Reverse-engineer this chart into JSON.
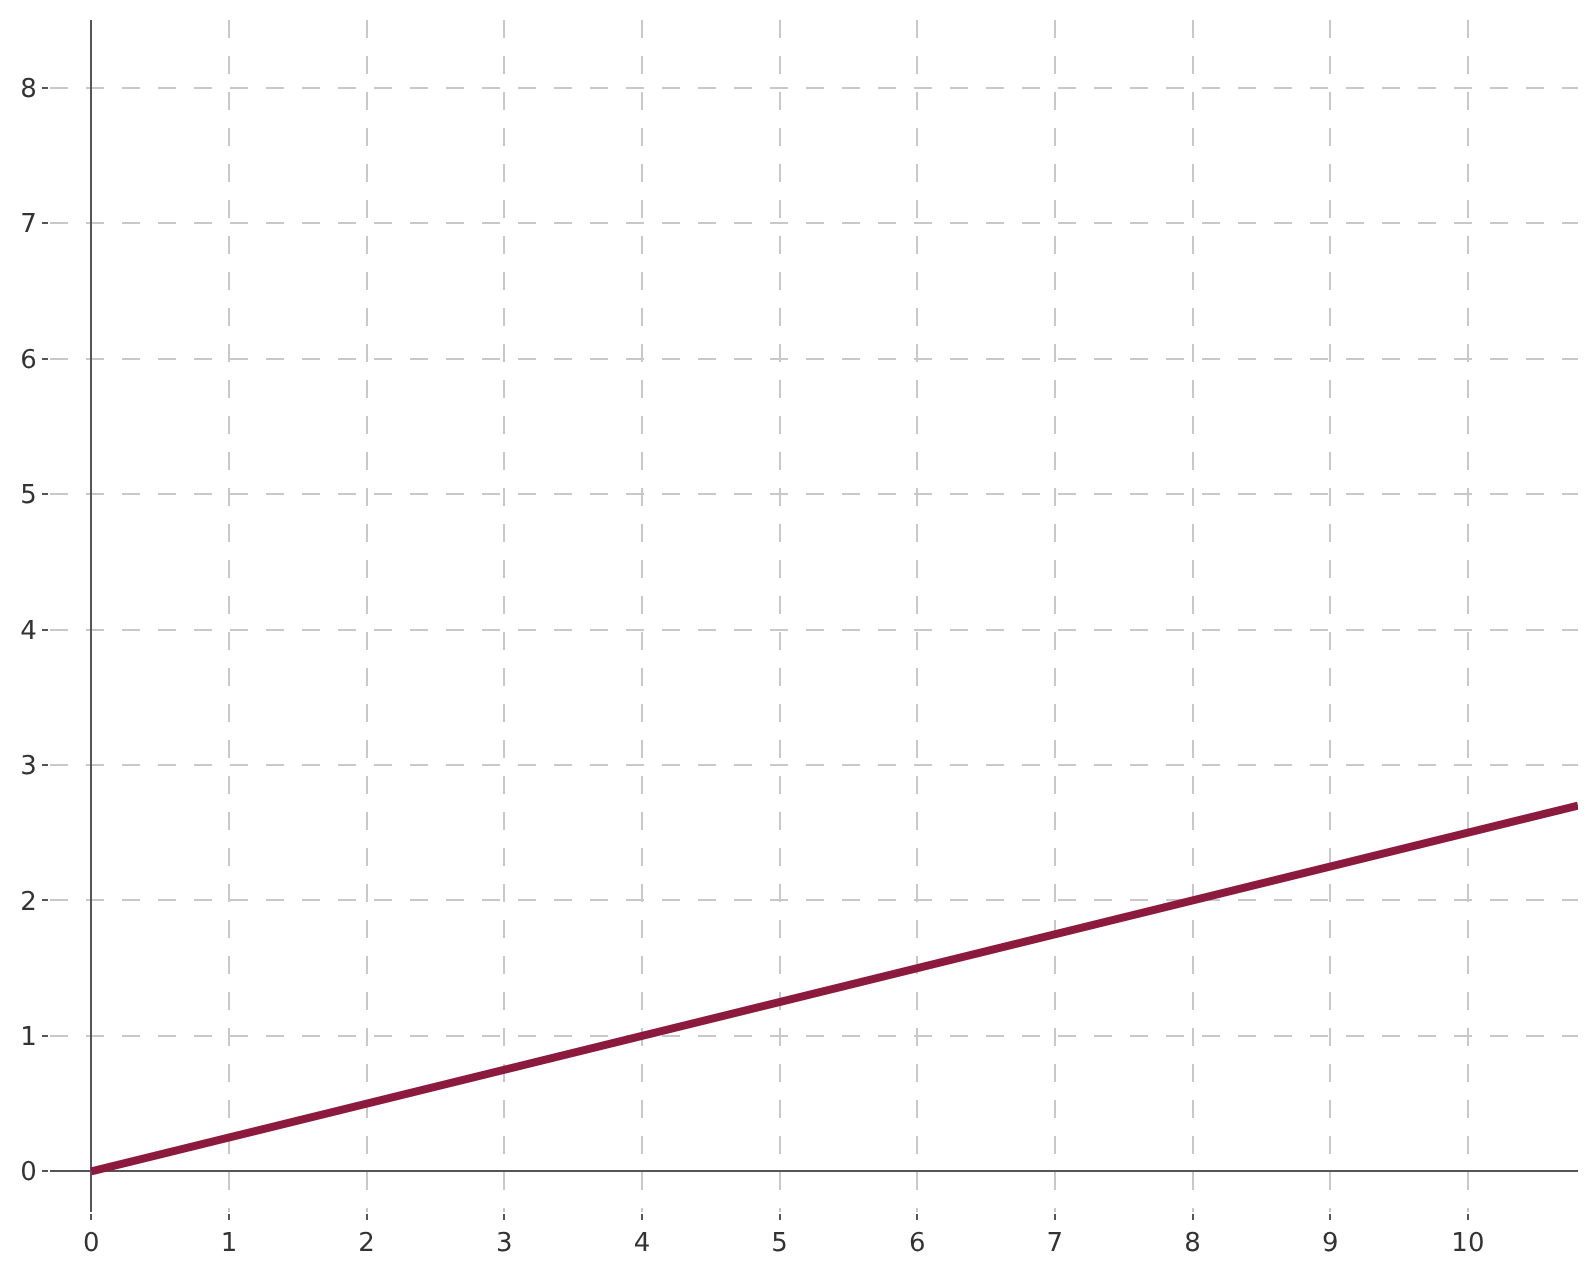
{
  "chart_data": {
    "type": "line",
    "x": [
      0,
      10.8
    ],
    "series": [
      {
        "color": "#8b1a3e",
        "values": [
          0,
          2.7
        ]
      }
    ],
    "xlim": [
      -0.3,
      10.8
    ],
    "ylim": [
      -0.3,
      8.5
    ],
    "xticks": [
      0,
      1,
      2,
      3,
      4,
      5,
      6,
      7,
      8,
      9,
      10
    ],
    "yticks": [
      0,
      1,
      2,
      3,
      4,
      5,
      6,
      7,
      8
    ],
    "grid": true,
    "marker": "none",
    "line_style": "solid",
    "legend": false
  }
}
